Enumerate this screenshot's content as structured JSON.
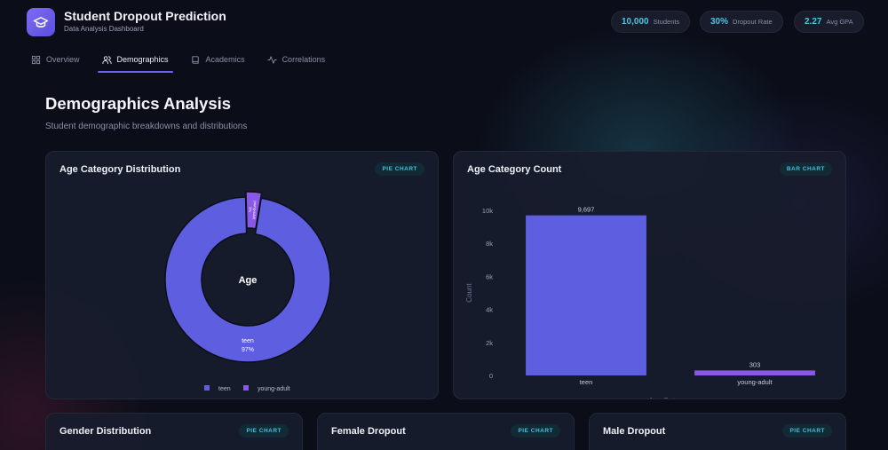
{
  "header": {
    "app_title": "Student Dropout Prediction",
    "app_subtitle": "Data Analysis Dashboard",
    "stats": [
      {
        "value": "10,000",
        "label": "Students"
      },
      {
        "value": "30%",
        "label": "Dropout Rate"
      },
      {
        "value": "2.27",
        "label": "Avg GPA"
      }
    ]
  },
  "tabs": [
    {
      "label": "Overview",
      "icon": "grid-icon"
    },
    {
      "label": "Demographics",
      "icon": "users-icon",
      "active": true
    },
    {
      "label": "Academics",
      "icon": "book-icon"
    },
    {
      "label": "Correlations",
      "icon": "activity-icon"
    }
  ],
  "page": {
    "title": "Demographics Analysis",
    "subtitle": "Student demographic breakdowns and distributions"
  },
  "cards": {
    "age_distribution": {
      "title": "Age Category Distribution",
      "badge": "PIE CHART"
    },
    "age_count": {
      "title": "Age Category Count",
      "badge": "BAR CHART"
    },
    "gender": {
      "title": "Gender Distribution",
      "badge": "PIE CHART"
    },
    "female_dropout": {
      "title": "Female Dropout",
      "badge": "PIE CHART"
    },
    "male_dropout": {
      "title": "Male Dropout",
      "badge": "PIE CHART"
    }
  },
  "colors": {
    "accent": "#6c63ee",
    "teen": "#5d5fe0",
    "young_adult": "#8a58e8",
    "cyan": "#42c2dc"
  },
  "chart_data": [
    {
      "type": "pie",
      "title": "Age Category Distribution",
      "center_label": "Age",
      "categories": [
        "teen",
        "young-adult"
      ],
      "values": [
        9697,
        303
      ],
      "slice_labels": [
        {
          "name": "teen",
          "pct": "97%"
        },
        {
          "name": "young-adult",
          "pct": "3%"
        }
      ],
      "legend": [
        "teen",
        "young-adult"
      ]
    },
    {
      "type": "bar",
      "title": "Age Category Count",
      "categories": [
        "teen",
        "young-adult"
      ],
      "values": [
        9697,
        303
      ],
      "value_labels": [
        "9,697",
        "303"
      ],
      "ylabel": "Count",
      "xlabel": "Age Category",
      "ylim": [
        0,
        10000
      ],
      "yticks": [
        0,
        2000,
        4000,
        6000,
        8000,
        10000
      ],
      "ytick_labels": [
        "0",
        "2k",
        "4k",
        "6k",
        "8k",
        "10k"
      ]
    }
  ]
}
